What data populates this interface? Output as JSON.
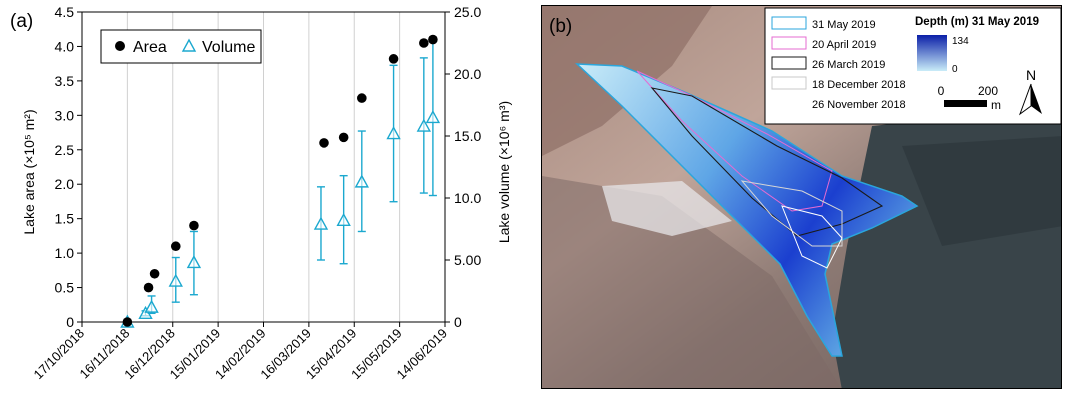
{
  "panel_a_label": "(a)",
  "panel_b_label": "(b)",
  "chart_data": {
    "type": "scatter",
    "x_axis": {
      "type": "date",
      "range": [
        "2018-10-17",
        "2019-06-14"
      ],
      "ticks": [
        "17/10/2018",
        "16/11/2018",
        "16/12/2018",
        "15/01/2019",
        "14/02/2019",
        "16/03/2019",
        "15/04/2019",
        "15/05/2019",
        "14/06/2019"
      ],
      "grid": true
    },
    "y_left": {
      "label": "Lake area (×10⁵ m²)",
      "range": [
        0,
        4.5
      ],
      "ticks": [
        "0",
        "0.5",
        "1.0",
        "1.5",
        "2.0",
        "2.5",
        "3.0",
        "3.5",
        "4.0",
        "4.5"
      ]
    },
    "y_right": {
      "label": "Lake volume (×10⁶ m³)",
      "range": [
        0,
        25
      ],
      "ticks": [
        "0",
        "5.00",
        "10.0",
        "15.0",
        "20.0",
        "25.0"
      ]
    },
    "legend": {
      "position": "top-left",
      "entries": [
        "Area",
        "Volume"
      ]
    },
    "series": [
      {
        "name": "Area",
        "axis": "left",
        "color": "#000000",
        "marker": "filled-circle",
        "points": [
          {
            "x": "2018-11-16",
            "y": 0.0
          },
          {
            "x": "2018-11-30",
            "y": 0.5
          },
          {
            "x": "2018-12-04",
            "y": 0.7
          },
          {
            "x": "2018-12-18",
            "y": 1.1
          },
          {
            "x": "2018-12-30",
            "y": 1.4
          },
          {
            "x": "2019-03-26",
            "y": 2.6
          },
          {
            "x": "2019-04-08",
            "y": 2.68
          },
          {
            "x": "2019-04-20",
            "y": 3.25
          },
          {
            "x": "2019-05-11",
            "y": 3.82
          },
          {
            "x": "2019-05-31",
            "y": 4.05
          },
          {
            "x": "2019-06-06",
            "y": 4.1
          }
        ]
      },
      {
        "name": "Volume",
        "axis": "right",
        "color": "#1ba8cf",
        "marker": "open-triangle",
        "points": [
          {
            "x": "2018-11-16",
            "y": 0.0,
            "err_low": 0.0,
            "err_high": 0.0
          },
          {
            "x": "2018-11-28",
            "y": 0.7,
            "err_low": 0.5,
            "err_high": 0.9
          },
          {
            "x": "2018-12-02",
            "y": 1.2,
            "err_low": 0.7,
            "err_high": 2.1
          },
          {
            "x": "2018-12-18",
            "y": 3.3,
            "err_low": 1.6,
            "err_high": 5.2
          },
          {
            "x": "2018-12-30",
            "y": 4.8,
            "err_low": 2.2,
            "err_high": 7.3
          },
          {
            "x": "2019-03-24",
            "y": 7.9,
            "err_low": 5.0,
            "err_high": 10.9
          },
          {
            "x": "2019-04-08",
            "y": 8.2,
            "err_low": 4.7,
            "err_high": 11.8
          },
          {
            "x": "2019-04-20",
            "y": 11.3,
            "err_low": 7.3,
            "err_high": 15.4
          },
          {
            "x": "2019-05-11",
            "y": 15.2,
            "err_low": 9.7,
            "err_high": 20.7
          },
          {
            "x": "2019-05-31",
            "y": 15.8,
            "err_low": 10.4,
            "err_high": 21.3
          },
          {
            "x": "2019-06-06",
            "y": 16.5,
            "err_low": 10.2,
            "err_high": 22.8
          }
        ]
      }
    ]
  },
  "map": {
    "legend": {
      "entries": [
        {
          "label": "31 May 2019",
          "color": "#2aa6dc"
        },
        {
          "label": "20 April 2019",
          "color": "#e56bd2"
        },
        {
          "label": "26 March 2019",
          "color": "#1a1a1a"
        },
        {
          "label": "18 December 2018",
          "color": "#c8c8c8"
        },
        {
          "label": "26 November 2018",
          "color": "#ffffff"
        }
      ],
      "depth_title": "Depth (m) 31 May 2019",
      "depth_max": "134",
      "depth_min": "0",
      "scale_zero": "0",
      "scale_value": "200",
      "scale_unit": "m",
      "north": "N"
    },
    "colors": {
      "depth_deep": "#0b1fa8",
      "depth_shallow": "#c9ecf8"
    }
  }
}
